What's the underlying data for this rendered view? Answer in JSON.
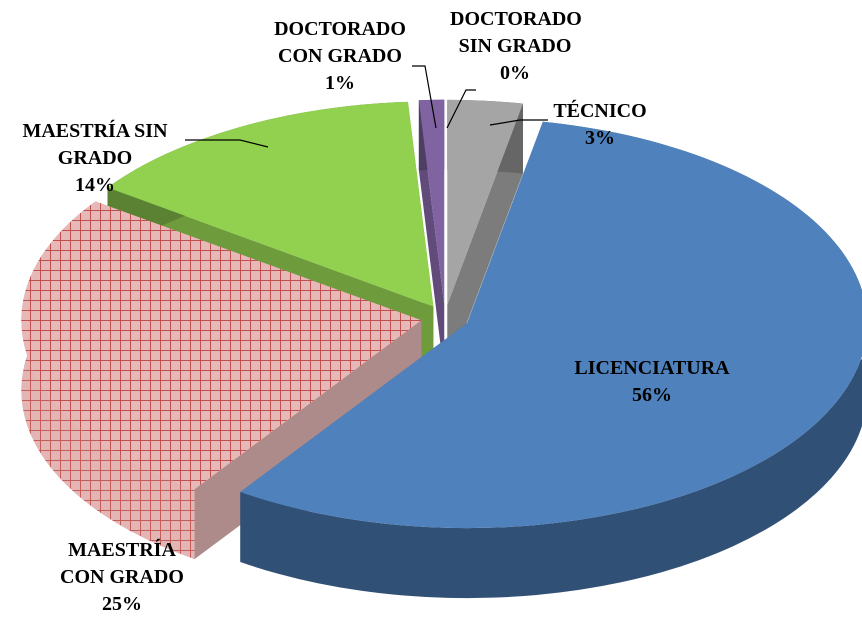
{
  "chart_data": {
    "type": "pie3d",
    "categories": [
      "TÉCNICO",
      "LICENCIATURA",
      "MAESTRÍA CON GRADO",
      "MAESTRÍA SIN GRADO",
      "DOCTORADO CON GRADO",
      "DOCTORADO SIN GRADO"
    ],
    "values": [
      3,
      56,
      25,
      14,
      1,
      0
    ],
    "value_labels": [
      "3%",
      "56%",
      "25%",
      "14%",
      "1%",
      "0%"
    ],
    "colors": [
      "#a5a5a5",
      "#4f81bd",
      "#e6b9b8",
      "#92d050",
      "#8064a2",
      "#4bacc6"
    ],
    "patterns": [
      null,
      null,
      "crosshatch",
      null,
      null,
      null
    ]
  }
}
